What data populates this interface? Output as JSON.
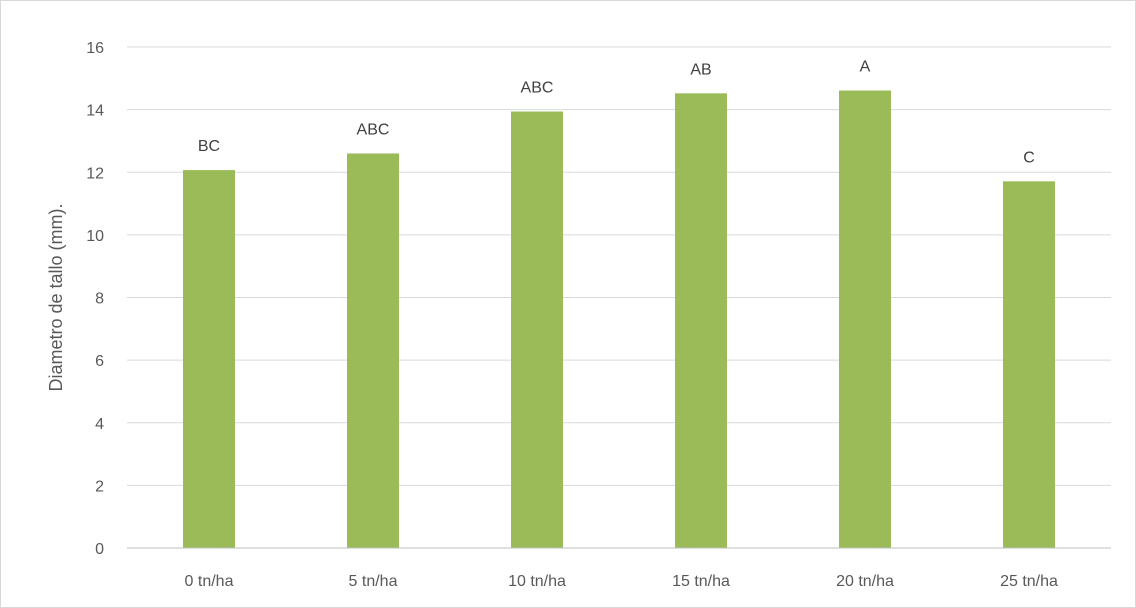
{
  "chart_data": {
    "type": "bar",
    "title": "",
    "xlabel": "",
    "ylabel": "Diametro de tallo (mm).",
    "categories": [
      "0 tn/ha",
      "5 tn/ha",
      "10 tn/ha",
      "15 tn/ha",
      "20 tn/ha",
      "25 tn/ha"
    ],
    "values": [
      12.07,
      12.6,
      13.94,
      14.52,
      14.61,
      11.71
    ],
    "data_labels": [
      "BC",
      "ABC",
      "ABC",
      "AB",
      "A",
      "C"
    ],
    "ylim": [
      0,
      16
    ],
    "yticks": [
      0,
      2,
      4,
      6,
      8,
      10,
      12,
      14,
      16
    ],
    "grid": true,
    "legend": "none",
    "colors": {
      "bar": "#9bbb59",
      "grid": "#d9d9d9",
      "axis": "#bfbfbf"
    }
  }
}
